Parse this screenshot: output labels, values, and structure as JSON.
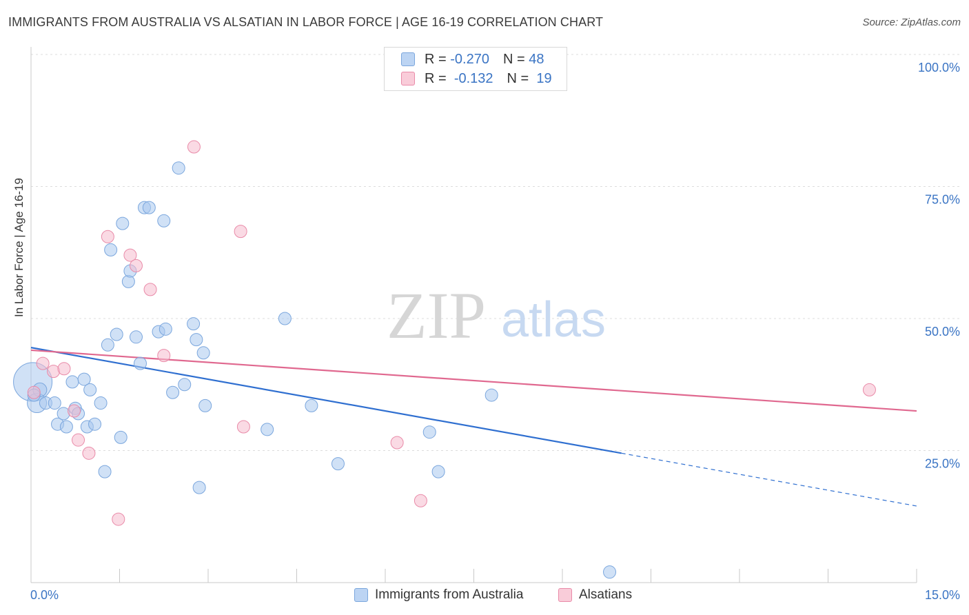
{
  "chart_data": {
    "type": "scatter",
    "title": "IMMIGRANTS FROM AUSTRALIA VS ALSATIAN IN LABOR FORCE | AGE 16-19 CORRELATION CHART",
    "source": "Source: ZipAtlas.com",
    "xlabel": "",
    "ylabel": "In Labor Force | Age 16-19",
    "xlim": [
      0,
      15
    ],
    "ylim": [
      0,
      105
    ],
    "x_tick_labels": {
      "left": "0.0%",
      "right": "15.0%"
    },
    "y_ticks": [
      {
        "value": 25,
        "label": "25.0%"
      },
      {
        "value": 50,
        "label": "50.0%"
      },
      {
        "value": 75,
        "label": "75.0%"
      },
      {
        "value": 100,
        "label": "100.0%"
      }
    ],
    "watermark": {
      "zip": "ZIP",
      "atlas": "atlas"
    },
    "legend": [
      {
        "r_label": "R =",
        "r_value": "-0.270",
        "n_label": "N =",
        "n_value": "48"
      },
      {
        "r_label": "R =",
        "r_value": "-0.132",
        "n_label": "N =",
        "n_value": "19"
      }
    ],
    "series": [
      {
        "name": "Immigrants from Australia",
        "color": "#a9c8ef",
        "stroke": "#7aa6dd",
        "trend": {
          "x0": 0,
          "y0": 44.5,
          "x1": 10.0,
          "y1": 24.5,
          "dash_x1": 15.0,
          "dash_y1": 14.5,
          "color": "#2f6fd0"
        },
        "points": [
          [
            0.03,
            38.0,
            28
          ],
          [
            0.1,
            34.0,
            14
          ],
          [
            0.15,
            36.5,
            10
          ],
          [
            0.25,
            34.0,
            9
          ],
          [
            0.4,
            34.0,
            9
          ],
          [
            0.45,
            30.0,
            9
          ],
          [
            0.55,
            32.0,
            9
          ],
          [
            0.6,
            29.5,
            9
          ],
          [
            0.7,
            38.0,
            9
          ],
          [
            0.75,
            33.0,
            9
          ],
          [
            0.8,
            32.0,
            9
          ],
          [
            0.9,
            38.5,
            9
          ],
          [
            0.95,
            29.5,
            9
          ],
          [
            1.0,
            36.5,
            9
          ],
          [
            1.08,
            30.0,
            9
          ],
          [
            1.18,
            34.0,
            9
          ],
          [
            1.25,
            21.0,
            9
          ],
          [
            1.3,
            45.0,
            9
          ],
          [
            1.35,
            63.0,
            9
          ],
          [
            1.45,
            47.0,
            9
          ],
          [
            1.52,
            27.5,
            9
          ],
          [
            1.55,
            68.0,
            9
          ],
          [
            1.65,
            57.0,
            9
          ],
          [
            1.68,
            59.0,
            9
          ],
          [
            1.78,
            46.5,
            9
          ],
          [
            1.85,
            41.5,
            9
          ],
          [
            1.92,
            71.0,
            9
          ],
          [
            2.0,
            71.0,
            9
          ],
          [
            2.16,
            47.5,
            9
          ],
          [
            2.25,
            68.5,
            9
          ],
          [
            2.28,
            48.0,
            9
          ],
          [
            2.4,
            36.0,
            9
          ],
          [
            2.5,
            78.5,
            9
          ],
          [
            2.6,
            37.5,
            9
          ],
          [
            2.75,
            49.0,
            9
          ],
          [
            2.8,
            46.0,
            9
          ],
          [
            2.85,
            18.0,
            9
          ],
          [
            2.92,
            43.5,
            9
          ],
          [
            2.95,
            33.5,
            9
          ],
          [
            4.0,
            29.0,
            9
          ],
          [
            4.3,
            50.0,
            9
          ],
          [
            4.75,
            33.5,
            9
          ],
          [
            5.2,
            22.5,
            9
          ],
          [
            6.75,
            28.5,
            9
          ],
          [
            6.9,
            21.0,
            9
          ],
          [
            7.8,
            35.5,
            9
          ],
          [
            9.8,
            2.0,
            9
          ],
          [
            0.05,
            35.5,
            9
          ]
        ]
      },
      {
        "name": "Alsatians",
        "color": "#f6bccd",
        "stroke": "#e98aa8",
        "trend": {
          "x0": 0,
          "y0": 44.0,
          "x1": 15.0,
          "y1": 32.5,
          "color": "#e0688f"
        },
        "points": [
          [
            0.05,
            36.0,
            9
          ],
          [
            0.2,
            41.5,
            9
          ],
          [
            0.38,
            40.0,
            9
          ],
          [
            0.56,
            40.5,
            9
          ],
          [
            0.73,
            32.5,
            9
          ],
          [
            0.8,
            27.0,
            9
          ],
          [
            0.98,
            24.5,
            9
          ],
          [
            1.3,
            65.5,
            9
          ],
          [
            1.48,
            12.0,
            9
          ],
          [
            1.68,
            62.0,
            9
          ],
          [
            1.78,
            60.0,
            9
          ],
          [
            2.02,
            55.5,
            9
          ],
          [
            2.25,
            43.0,
            9
          ],
          [
            2.76,
            82.5,
            9
          ],
          [
            3.6,
            29.5,
            9
          ],
          [
            3.55,
            66.5,
            9
          ],
          [
            6.2,
            26.5,
            9
          ],
          [
            6.6,
            15.5,
            9
          ],
          [
            14.2,
            36.5,
            9
          ]
        ]
      }
    ]
  }
}
